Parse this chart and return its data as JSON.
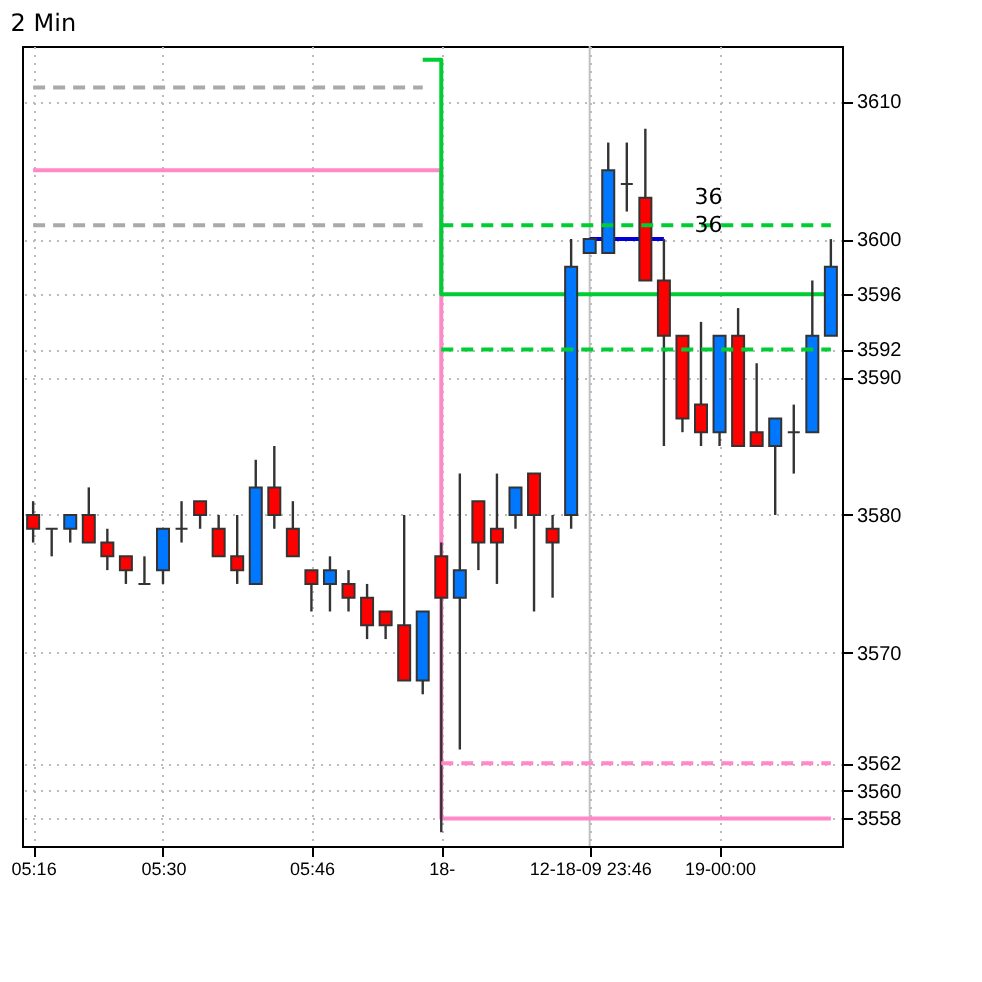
{
  "chart_data": {
    "type": "candlestick",
    "title": "2 Min",
    "categories": [
      "05:16",
      null,
      null,
      null,
      null,
      null,
      null,
      "05:30",
      null,
      null,
      null,
      null,
      null,
      null,
      null,
      "05:46",
      null,
      null,
      null,
      null,
      null,
      null,
      "18-",
      null,
      null,
      null,
      null,
      null,
      null,
      null,
      "12-18-09 23:46",
      null,
      null,
      null,
      null,
      null,
      null,
      "19-00:00",
      null,
      null,
      null,
      null,
      null,
      null
    ],
    "ohlc": [
      [
        3580,
        3581,
        3578,
        3579
      ],
      [
        3579,
        3579,
        3577,
        3579
      ],
      [
        3579,
        3580,
        3578,
        3580
      ],
      [
        3580,
        3582,
        3578,
        3578
      ],
      [
        3578,
        3579,
        3576,
        3577
      ],
      [
        3577,
        3577,
        3575,
        3576
      ],
      [
        3575,
        3577,
        3575,
        3575
      ],
      [
        3576,
        3579,
        3575,
        3579
      ],
      [
        3579,
        3581,
        3578,
        3579
      ],
      [
        3581,
        3581,
        3579,
        3580
      ],
      [
        3579,
        3580,
        3577,
        3577
      ],
      [
        3577,
        3580,
        3575,
        3576
      ],
      [
        3575,
        3584,
        3575,
        3582
      ],
      [
        3582,
        3585,
        3579,
        3580
      ],
      [
        3579,
        3581,
        3577,
        3577
      ],
      [
        3576,
        3576,
        3573,
        3575
      ],
      [
        3575,
        3577,
        3573,
        3576
      ],
      [
        3575,
        3576,
        3573,
        3574
      ],
      [
        3574,
        3575,
        3571,
        3572
      ],
      [
        3573,
        3573,
        3571,
        3572
      ],
      [
        3572,
        3580,
        3568,
        3568
      ],
      [
        3568,
        3573,
        3567,
        3573
      ],
      [
        3577,
        3578,
        3557,
        3574
      ],
      [
        3574,
        3583,
        3563,
        3576
      ],
      [
        3581,
        3581,
        3576,
        3578
      ],
      [
        3579,
        3583,
        3575,
        3578
      ],
      [
        3580,
        3582,
        3579,
        3582
      ],
      [
        3583,
        3583,
        3573,
        3580
      ],
      [
        3579,
        3580,
        3574,
        3578
      ],
      [
        3580,
        3600,
        3579,
        3598
      ],
      [
        3599,
        3600,
        3599,
        3600
      ],
      [
        3599,
        3607,
        3599,
        3605
      ],
      [
        3604,
        3607,
        3602,
        3604
      ],
      [
        3603,
        3608,
        3597,
        3597
      ],
      [
        3597,
        3600,
        3585,
        3593
      ],
      [
        3593,
        3593,
        3586,
        3587
      ],
      [
        3588,
        3594,
        3585,
        3586
      ],
      [
        3586,
        3593,
        3585,
        3593
      ],
      [
        3593,
        3595,
        3585,
        3585
      ],
      [
        3586,
        3591,
        3585,
        3585
      ],
      [
        3585,
        3587,
        3580,
        3587
      ],
      [
        3586,
        3588,
        3583,
        3586
      ],
      [
        3586,
        3597,
        3586,
        3593
      ],
      [
        3593,
        3600,
        3593,
        3598
      ]
    ],
    "colors": [
      "#ff0000",
      "#333333",
      "#0077ff",
      "#ff0000",
      "#ff0000",
      "#ff0000",
      "#333333",
      "#0077ff",
      "#333333",
      "#ff0000",
      "#ff0000",
      "#ff0000",
      "#0077ff",
      "#ff0000",
      "#ff0000",
      "#ff0000",
      "#0077ff",
      "#ff0000",
      "#ff0000",
      "#ff0000",
      "#ff0000",
      "#0077ff",
      "#ff0000",
      "#0077ff",
      "#ff0000",
      "#ff0000",
      "#0077ff",
      "#ff0000",
      "#ff0000",
      "#0077ff",
      "#0077ff",
      "#0077ff",
      "#333333",
      "#ff0000",
      "#ff0000",
      "#ff0000",
      "#ff0000",
      "#0077ff",
      "#ff0000",
      "#ff0000",
      "#0077ff",
      "#333333",
      "#0077ff",
      "#0077ff"
    ],
    "series": [
      {
        "type": "step",
        "color": "#ff88c8",
        "line_style": "solid",
        "values": [
          3605,
          3605,
          3605,
          3605,
          3605,
          3605,
          3605,
          3605,
          3605,
          3605,
          3605,
          3605,
          3605,
          3605,
          3605,
          3605,
          3605,
          3605,
          3605,
          3605,
          3605,
          3605,
          3558,
          3558,
          3558,
          3558,
          3558,
          3558,
          3558,
          3558,
          3558,
          3558,
          3558,
          3558,
          3558,
          3558,
          3558,
          3558,
          3558,
          3558,
          3558,
          3558,
          3558,
          3558
        ]
      },
      {
        "type": "step",
        "color": "#00cc33",
        "line_style": "solid",
        "values": [
          null,
          null,
          null,
          null,
          null,
          null,
          null,
          null,
          null,
          null,
          null,
          null,
          null,
          null,
          null,
          null,
          null,
          null,
          null,
          null,
          null,
          3613,
          3596,
          3596,
          3596,
          3596,
          3596,
          3596,
          3596,
          3596,
          3596,
          3596,
          3596,
          3596,
          3596,
          3596,
          3596,
          3596,
          3596,
          3596,
          3596,
          3596,
          3596,
          3596
        ]
      },
      {
        "type": "line",
        "color": "#aaaaaa",
        "line_style": "dashed",
        "values": [
          3611,
          3611,
          3611,
          3611,
          3611,
          3611,
          3611,
          3611,
          3611,
          3611,
          3611,
          3611,
          3611,
          3611,
          3611,
          3611,
          3611,
          3611,
          3611,
          3611,
          3611,
          3611,
          null,
          null,
          null,
          null,
          null,
          null,
          null,
          null,
          null,
          null,
          null,
          null,
          null,
          null,
          null,
          null,
          null,
          null,
          null,
          null,
          null,
          null
        ]
      },
      {
        "type": "line",
        "color": "#aaaaaa",
        "line_style": "dashed",
        "values": [
          3601,
          3601,
          3601,
          3601,
          3601,
          3601,
          3601,
          3601,
          3601,
          3601,
          3601,
          3601,
          3601,
          3601,
          3601,
          3601,
          3601,
          3601,
          3601,
          3601,
          3601,
          3601,
          null,
          null,
          null,
          null,
          null,
          null,
          null,
          null,
          null,
          null,
          null,
          null,
          null,
          null,
          null,
          null,
          null,
          null,
          null,
          null,
          null,
          null
        ]
      },
      {
        "type": "line",
        "color": "#00cc33",
        "line_style": "dashed",
        "values": [
          null,
          null,
          null,
          null,
          null,
          null,
          null,
          null,
          null,
          null,
          null,
          null,
          null,
          null,
          null,
          null,
          null,
          null,
          null,
          null,
          null,
          null,
          3601,
          3601,
          3601,
          3601,
          3601,
          3601,
          3601,
          3601,
          3601,
          3601,
          3601,
          3601,
          3601,
          3601,
          3601,
          3601,
          3601,
          3601,
          3601,
          3601,
          3601,
          3601
        ]
      },
      {
        "type": "line",
        "color": "#00cc33",
        "line_style": "dashed",
        "values": [
          null,
          null,
          null,
          null,
          null,
          null,
          null,
          null,
          null,
          null,
          null,
          null,
          null,
          null,
          null,
          null,
          null,
          null,
          null,
          null,
          null,
          null,
          3592,
          3592,
          3592,
          3592,
          3592,
          3592,
          3592,
          3592,
          3592,
          3592,
          3592,
          3592,
          3592,
          3592,
          3592,
          3592,
          3592,
          3592,
          3592,
          3592,
          3592,
          3592
        ]
      },
      {
        "type": "line",
        "color": "#ff88c8",
        "line_style": "dashed",
        "values": [
          null,
          null,
          null,
          null,
          null,
          null,
          null,
          null,
          null,
          null,
          null,
          null,
          null,
          null,
          null,
          null,
          null,
          null,
          null,
          null,
          null,
          null,
          3562,
          3562,
          3562,
          3562,
          3562,
          3562,
          3562,
          3562,
          3562,
          3562,
          3562,
          3562,
          3562,
          3562,
          3562,
          3562,
          3562,
          3562,
          3562,
          3562,
          3562,
          3562
        ]
      },
      {
        "type": "line",
        "color": "#0000dd",
        "line_style": "solid",
        "values": [
          null,
          null,
          null,
          null,
          null,
          null,
          null,
          null,
          null,
          null,
          null,
          null,
          null,
          null,
          null,
          null,
          null,
          null,
          null,
          null,
          null,
          null,
          null,
          null,
          null,
          null,
          null,
          null,
          null,
          null,
          3600,
          3600,
          3600,
          3600,
          3600,
          null,
          null,
          null,
          null,
          null,
          null,
          null,
          null,
          null
        ]
      }
    ],
    "ref_lines": [
      {
        "axis": "x",
        "value": "12-18-09 23:46",
        "color": "#c0c0c0"
      }
    ],
    "annotations": [
      "36",
      "36"
    ],
    "ylim": [
      3556,
      3614
    ],
    "yticks": [
      3558,
      3560,
      3562,
      3570,
      3580,
      3590,
      3592,
      3596,
      3600,
      3610
    ],
    "grid": true,
    "legend": false
  }
}
